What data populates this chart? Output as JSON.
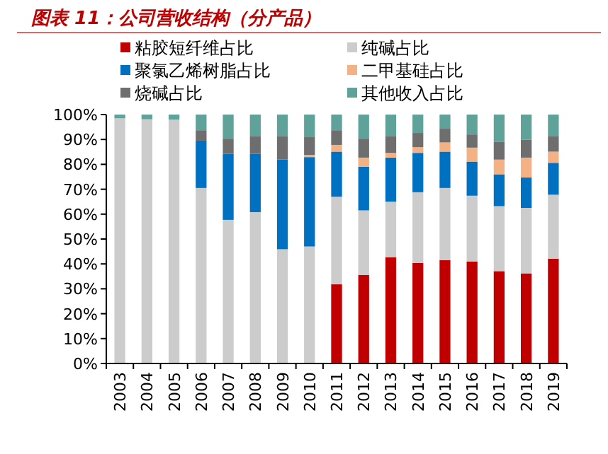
{
  "chart_data": {
    "type": "bar",
    "stacked": true,
    "title": "图表 11：公司营收结构（分产品）",
    "categories": [
      "2003",
      "2004",
      "2005",
      "2006",
      "2007",
      "2008",
      "2009",
      "2010",
      "2011",
      "2012",
      "2013",
      "2014",
      "2015",
      "2016",
      "2017",
      "2018",
      "2019"
    ],
    "series": [
      {
        "name": "粘胶短纤维占比",
        "color": "#c00000",
        "values": [
          0,
          0,
          0,
          0,
          0,
          0,
          0,
          0,
          31.8,
          35.6,
          42.7,
          40.4,
          41.5,
          41,
          37.1,
          36.2,
          42.1
        ]
      },
      {
        "name": "纯碱占比",
        "color": "#cccccc",
        "values": [
          98.5,
          98.1,
          98,
          70.5,
          57.7,
          60.8,
          45.9,
          47,
          35.2,
          25.9,
          22.3,
          28.4,
          29,
          26.4,
          26.1,
          26.3,
          25.7
        ]
      },
      {
        "name": "聚氯乙烯树脂占比",
        "color": "#0070c0",
        "values": [
          0,
          0,
          0,
          19,
          26.5,
          23.4,
          36,
          35.9,
          18.1,
          17.5,
          17.7,
          15.8,
          14.6,
          13.7,
          12.8,
          12.2,
          12.8
        ]
      },
      {
        "name": "二甲基硅占比",
        "color": "#f4b183",
        "values": [
          0,
          0,
          0,
          0,
          0,
          0,
          0,
          0.9,
          2.7,
          3.7,
          1.9,
          2.3,
          3.7,
          5.6,
          5.9,
          8,
          4.5
        ]
      },
      {
        "name": "烧碱占比",
        "color": "#6e6e6e",
        "values": [
          0,
          0,
          0,
          4.2,
          6.1,
          7.2,
          9.5,
          7.1,
          5.9,
          7.6,
          6.8,
          5.7,
          5.5,
          5.3,
          7.2,
          7.2,
          6.3
        ]
      },
      {
        "name": "其他收入占比",
        "color": "#5fa29a",
        "values": [
          1.5,
          1.9,
          2,
          6.3,
          9.7,
          8.6,
          8.6,
          9.1,
          6.3,
          9.7,
          8.6,
          7.4,
          5.7,
          8,
          10.9,
          10.1,
          8.6
        ]
      }
    ],
    "ylim": [
      0,
      100
    ],
    "yticks": [
      {
        "value": 0,
        "label": "0%"
      },
      {
        "value": 10,
        "label": "10%"
      },
      {
        "value": 20,
        "label": "20%"
      },
      {
        "value": 30,
        "label": "30%"
      },
      {
        "value": 40,
        "label": "40%"
      },
      {
        "value": 50,
        "label": "50%"
      },
      {
        "value": 60,
        "label": "60%"
      },
      {
        "value": 70,
        "label": "70%"
      },
      {
        "value": 80,
        "label": "80%"
      },
      {
        "value": 90,
        "label": "90%"
      },
      {
        "value": 100,
        "label": "100%"
      }
    ],
    "legend": "top",
    "grid": false
  }
}
